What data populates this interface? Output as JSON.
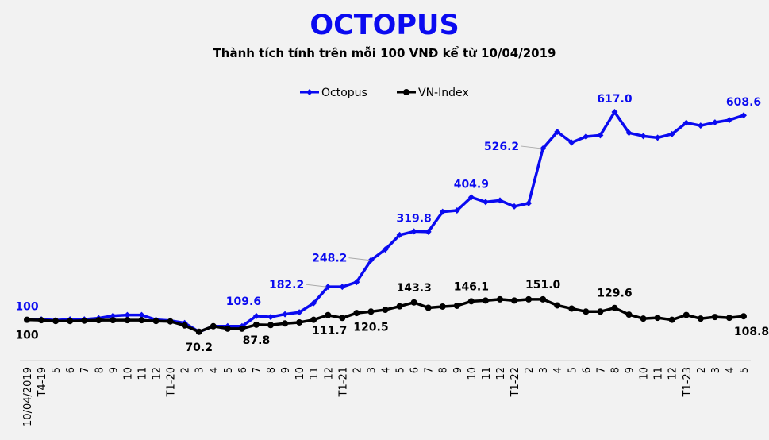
{
  "chart_data": {
    "type": "line",
    "title": "OCTOPUS",
    "subtitle": "Thành tích tính trên mỗi 100 VNĐ kể từ 10/04/2019",
    "legend_position": "top",
    "grid": false,
    "ylim": [
      0,
      650
    ],
    "categories": [
      "10/04/2019",
      "T4-19",
      "5",
      "6",
      "7",
      "8",
      "9",
      "10",
      "11",
      "12",
      "T1-20",
      "2",
      "3",
      "4",
      "5",
      "6",
      "7",
      "8",
      "9",
      "10",
      "11",
      "12",
      "T1-21",
      "2",
      "3",
      "4",
      "5",
      "6",
      "7",
      "8",
      "9",
      "10",
      "11",
      "12",
      "T1-22",
      "2",
      "3",
      "4",
      "5",
      "6",
      "7",
      "8",
      "9",
      "10",
      "11",
      "12",
      "T1-23",
      "2",
      "3",
      "4",
      "5"
    ],
    "series": [
      {
        "name": "Octopus",
        "color": "#0a0af0",
        "marker": "diamond",
        "values": [
          100,
          101,
          99,
          101,
          101,
          104,
          110,
          112,
          112,
          100,
          98,
          92,
          70,
          84,
          84,
          84,
          109.6,
          107,
          114,
          118.6,
          141.5,
          182.2,
          182,
          194,
          248.2,
          275,
          311,
          319.8,
          319,
          368.8,
          372,
          404.9,
          393,
          397,
          382,
          390,
          526.2,
          567.6,
          541,
          555.7,
          559,
          617.0,
          565,
          557,
          553,
          562,
          590,
          583,
          591,
          597,
          608.6
        ],
        "labels": [
          {
            "index": 0,
            "text": "100"
          },
          {
            "index": 16,
            "text": "109.6"
          },
          {
            "index": 21,
            "text": "182.2"
          },
          {
            "index": 24,
            "text": "248.2"
          },
          {
            "index": 27,
            "text": "319.8"
          },
          {
            "index": 31,
            "text": "404.9"
          },
          {
            "index": 36,
            "text": "526.2"
          },
          {
            "index": 41,
            "text": "617.0"
          },
          {
            "index": 50,
            "text": "608.6"
          }
        ]
      },
      {
        "name": "VN-Index",
        "color": "#000000",
        "marker": "circle",
        "values": [
          100,
          99,
          97,
          97,
          98,
          99,
          99,
          99,
          99,
          97,
          96,
          86,
          70.2,
          84,
          78,
          78,
          87.8,
          87,
          91,
          93.5,
          100,
          111.7,
          104.7,
          117,
          120.5,
          125,
          133.6,
          143.3,
          130,
          133,
          135,
          146.1,
          148,
          151,
          148,
          151,
          151.0,
          136,
          128,
          120.5,
          120.5,
          129.6,
          113,
          103,
          105,
          100,
          112,
          103,
          107,
          105,
          108.8
        ],
        "labels": [
          {
            "index": 0,
            "text": "100"
          },
          {
            "index": 12,
            "text": "70.2"
          },
          {
            "index": 16,
            "text": "87.8"
          },
          {
            "index": 21,
            "text": "111.7"
          },
          {
            "index": 24,
            "text": "120.5"
          },
          {
            "index": 27,
            "text": "143.3"
          },
          {
            "index": 31,
            "text": "146.1"
          },
          {
            "index": 36,
            "text": "151.0"
          },
          {
            "index": 41,
            "text": "129.6"
          },
          {
            "index": 50,
            "text": "108.8"
          }
        ]
      }
    ]
  }
}
